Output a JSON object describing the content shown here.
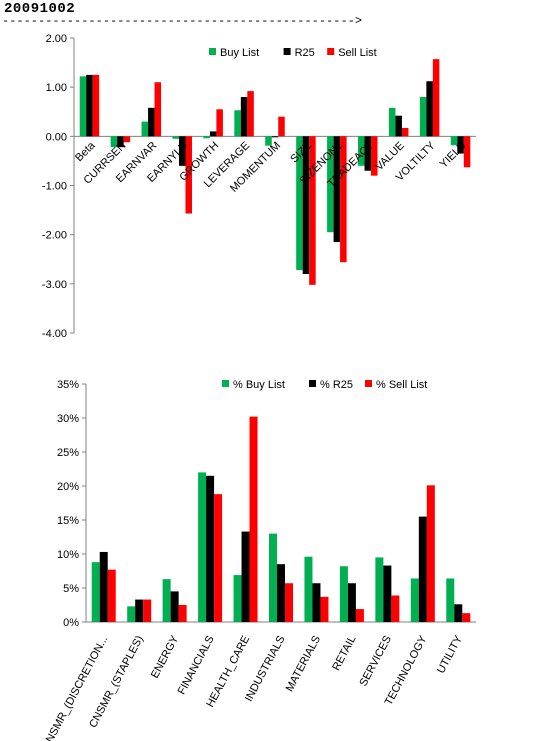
{
  "header": {
    "date": "20091002",
    "arrow": "------------------------------------------------->"
  },
  "colors": {
    "buy": "#00B050",
    "r25": "#000000",
    "sell": "#FF0000"
  },
  "chart_data": [
    {
      "type": "bar",
      "title": "",
      "categories": [
        "Beta",
        "CURRSEN",
        "EARNVAR",
        "EARNYLD",
        "GROWTH",
        "LEVERAGE",
        "MOMENTUM",
        "SIZE",
        "SIZENONL",
        "TRADEACT",
        "VALUE",
        "VOLTILTY",
        "YIELD"
      ],
      "series": [
        {
          "name": "Buy List",
          "color": "#00B050",
          "values": [
            1.22,
            -0.22,
            0.3,
            -0.05,
            -0.04,
            0.53,
            -0.19,
            -2.72,
            -1.95,
            -0.6,
            0.58,
            0.8,
            -0.18
          ]
        },
        {
          "name": "R25",
          "color": "#000000",
          "values": [
            1.25,
            -0.22,
            0.58,
            -0.6,
            0.1,
            0.8,
            -0.02,
            -2.8,
            -2.15,
            -0.7,
            0.42,
            1.12,
            -0.35
          ]
        },
        {
          "name": "Sell List",
          "color": "#FF0000",
          "values": [
            1.25,
            -0.12,
            1.1,
            -1.57,
            0.55,
            0.92,
            0.4,
            -3.02,
            -2.56,
            -0.8,
            0.17,
            1.57,
            -0.63
          ]
        }
      ],
      "ylim": [
        -4,
        2
      ],
      "yticks": [
        "2.00",
        "1.00",
        "0.00",
        "-1.00",
        "-2.00",
        "-3.00",
        "-4.00"
      ],
      "ytick_values": [
        2,
        1,
        0,
        -1,
        -2,
        -3,
        -4
      ],
      "legend_position": "top-right",
      "grid": false
    },
    {
      "type": "bar",
      "title": "",
      "categories": [
        "CNSMR_(DISCRETION...",
        "CNSMR_(STAPLES)",
        "ENERGY",
        "FINANCIALS",
        "HEALTH_CARE",
        "INDUSTRIALS",
        "MATERIALS",
        "RETAIL",
        "SERVICES",
        "TECHNOLOGY",
        "UTILITY"
      ],
      "series": [
        {
          "name": "% Buy List",
          "color": "#00B050",
          "values": [
            8.8,
            2.3,
            6.3,
            22.0,
            6.9,
            13.0,
            9.6,
            8.2,
            9.5,
            6.4,
            6.4
          ]
        },
        {
          "name": "% R25",
          "color": "#000000",
          "values": [
            10.3,
            3.3,
            4.5,
            21.5,
            13.3,
            8.5,
            5.7,
            5.7,
            8.3,
            15.5,
            2.6
          ]
        },
        {
          "name": "% Sell List",
          "color": "#FF0000",
          "values": [
            7.7,
            3.3,
            2.5,
            18.8,
            30.2,
            5.7,
            3.7,
            1.9,
            3.9,
            20.1,
            1.3
          ]
        }
      ],
      "ylim": [
        0,
        35
      ],
      "yticks": [
        "35%",
        "30%",
        "25%",
        "20%",
        "15%",
        "10%",
        "5%",
        "0%"
      ],
      "ytick_values": [
        35,
        30,
        25,
        20,
        15,
        10,
        5,
        0
      ],
      "legend_position": "top-right",
      "grid": false
    }
  ]
}
